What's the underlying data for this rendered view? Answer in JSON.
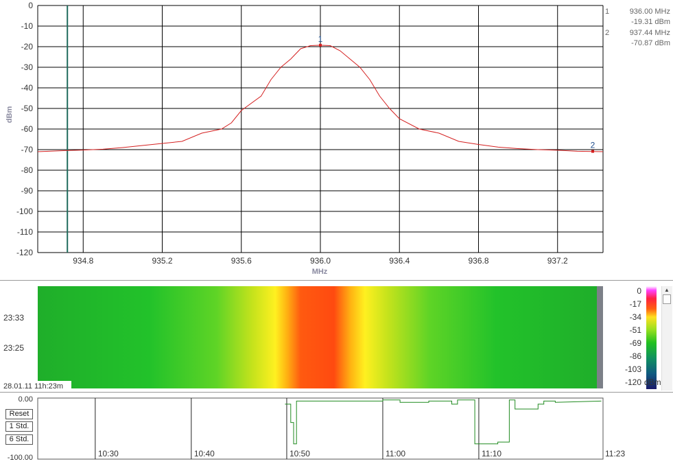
{
  "chart_data": [
    {
      "type": "line",
      "title": "",
      "xlabel": "MHz",
      "ylabel": "dBm",
      "xlim": [
        934.57,
        937.43
      ],
      "ylim": [
        -120,
        0
      ],
      "xticks": [
        934.8,
        935.2,
        935.6,
        936.0,
        936.4,
        936.8,
        937.2
      ],
      "xtick_labels": [
        "934.8",
        "935.2",
        "935.6",
        "936.0",
        "936.4",
        "936.8",
        "937.2"
      ],
      "yticks": [
        0,
        -10,
        -20,
        -30,
        -40,
        -50,
        -60,
        -70,
        -80,
        -90,
        -100,
        -110,
        -120
      ],
      "ytick_labels": [
        "0",
        "-10",
        "-20",
        "-30",
        "-40",
        "-50",
        "-60",
        "-70",
        "-80",
        "-90",
        "-100",
        "-110",
        "-120"
      ],
      "grid": true,
      "colors": {
        "trace": "#d42020",
        "cursor": "#1f6b5c",
        "grid": "#000000",
        "marker": "#1f4e8c"
      },
      "series": [
        {
          "x": [
            934.57,
            934.7,
            934.8,
            934.9,
            935.0,
            935.1,
            935.2,
            935.3,
            935.4,
            935.5,
            935.55,
            935.6,
            935.7,
            935.75,
            935.8,
            935.85,
            935.9,
            935.95,
            936.0,
            936.05,
            936.1,
            936.15,
            936.2,
            936.25,
            936.3,
            936.35,
            936.4,
            936.5,
            936.6,
            936.7,
            936.8,
            936.9,
            937.0,
            937.1,
            937.2,
            937.3,
            937.43
          ],
          "y": [
            -71,
            -70.5,
            -70.2,
            -69.8,
            -69,
            -68,
            -67,
            -66,
            -62,
            -60,
            -57,
            -51,
            -44,
            -36,
            -30,
            -26,
            -21,
            -19.5,
            -19.3,
            -19.5,
            -22,
            -26,
            -30,
            -36,
            -44,
            -50,
            -55,
            -60,
            -62,
            -66,
            -67.5,
            -68.8,
            -69.5,
            -70,
            -70.3,
            -70.8,
            -71
          ]
        }
      ],
      "cursor_line": {
        "x": 934.72
      },
      "markers": [
        {
          "id": "1",
          "x": 936.0,
          "y": -19.31,
          "freq_label": "936.00 MHz",
          "level_label": "-19.31 dBm"
        },
        {
          "id": "2",
          "x": 937.44,
          "y": -70.87,
          "freq_label": "937.44 MHz",
          "level_label": "-70.87 dBm"
        }
      ]
    },
    {
      "type": "heatmap",
      "y_tick_labels": [
        "23:33",
        "23:25"
      ],
      "timestamp": "28.01.11 11h:23m",
      "colorbar": {
        "labels": [
          "0",
          "-17",
          "-34",
          "-51",
          "-69",
          "-86",
          "-103",
          "-120"
        ],
        "unit": "dBm",
        "range": [
          -120,
          0
        ]
      }
    },
    {
      "type": "line",
      "ylim": [
        -100,
        0
      ],
      "ytick_labels": [
        "0.00",
        "-100.00"
      ],
      "xtick_labels": [
        "10:30",
        "10:40",
        "10:50",
        "11:00",
        "11:10",
        "11:23"
      ],
      "colors": {
        "trace": "#1f8a1f"
      },
      "series": [
        {
          "x": [
            10.83,
            10.84,
            10.84,
            10.845,
            10.845,
            10.85,
            10.85,
            11.0,
            11.0,
            11.03,
            11.03,
            11.08,
            11.08,
            11.12,
            11.12,
            11.13,
            11.13,
            11.16,
            11.16,
            11.2,
            11.2,
            11.22,
            11.22,
            11.23,
            11.23,
            11.27,
            11.27,
            11.28,
            11.28,
            11.3,
            11.3,
            11.38
          ],
          "y": [
            -10,
            -10,
            -40,
            -40,
            -75,
            -75,
            -5,
            -5,
            -3,
            -3,
            -7,
            -7,
            -5,
            -5,
            -10,
            -10,
            -3,
            -3,
            -75,
            -75,
            -72,
            -72,
            -3,
            -3,
            -18,
            -18,
            -10,
            -10,
            -5,
            -5,
            -7,
            -5
          ]
        }
      ]
    }
  ],
  "buttons": {
    "reset": "Reset",
    "std1": "1 Std.",
    "std6": "6 Std."
  }
}
